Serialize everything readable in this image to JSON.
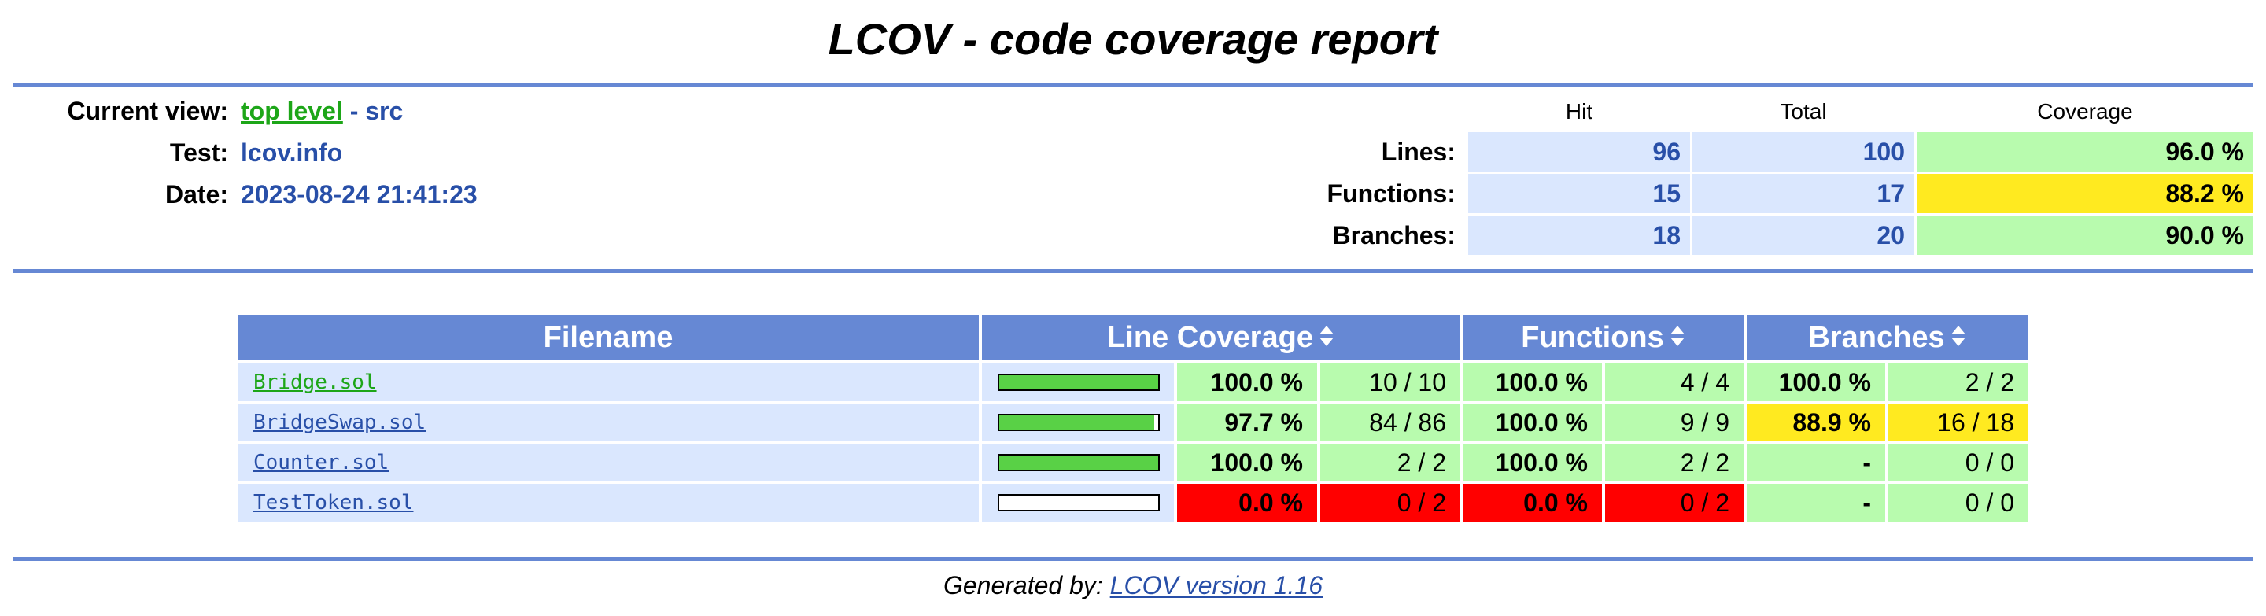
{
  "page_title": "LCOV - code coverage report",
  "header": {
    "current_view_label": "Current view:",
    "current_view_link": "top level",
    "current_view_sep": " - ",
    "current_view_dir": "src",
    "test_label": "Test:",
    "test_value": "lcov.info",
    "date_label": "Date:",
    "date_value": "2023-08-24 21:41:23"
  },
  "summary": {
    "col_hit": "Hit",
    "col_total": "Total",
    "col_coverage": "Coverage",
    "rows": [
      {
        "label": "Lines:",
        "hit": "96",
        "total": "100",
        "coverage": "96.0 %",
        "level": "hi"
      },
      {
        "label": "Functions:",
        "hit": "15",
        "total": "17",
        "coverage": "88.2 %",
        "level": "med"
      },
      {
        "label": "Branches:",
        "hit": "18",
        "total": "20",
        "coverage": "90.0 %",
        "level": "hi"
      }
    ]
  },
  "table": {
    "headers": {
      "filename": "Filename",
      "line_coverage": "Line Coverage",
      "functions": "Functions",
      "branches": "Branches"
    },
    "rows": [
      {
        "file": "Bridge.sol",
        "line_bar": 1.0,
        "line_pct": "100.0 %",
        "line_cnt": "10 / 10",
        "line_level": "hi",
        "fn_pct": "100.0 %",
        "fn_cnt": "4 / 4",
        "fn_level": "hi",
        "br_pct": "100.0 %",
        "br_cnt": "2 / 2",
        "br_level": "hi"
      },
      {
        "file": "BridgeSwap.sol",
        "line_bar": 0.977,
        "line_pct": "97.7 %",
        "line_cnt": "84 / 86",
        "line_level": "hi",
        "fn_pct": "100.0 %",
        "fn_cnt": "9 / 9",
        "fn_level": "hi",
        "br_pct": "88.9 %",
        "br_cnt": "16 / 18",
        "br_level": "med"
      },
      {
        "file": "Counter.sol",
        "line_bar": 1.0,
        "line_pct": "100.0 %",
        "line_cnt": "2 / 2",
        "line_level": "hi",
        "fn_pct": "100.0 %",
        "fn_cnt": "2 / 2",
        "fn_level": "hi",
        "br_pct": "-",
        "br_cnt": "0 / 0",
        "br_level": "hi"
      },
      {
        "file": "TestToken.sol",
        "line_bar": 0.0,
        "line_pct": "0.0 %",
        "line_cnt": "0 / 2",
        "line_level": "lo",
        "fn_pct": "0.0 %",
        "fn_cnt": "0 / 2",
        "fn_level": "lo",
        "br_pct": "-",
        "br_cnt": "0 / 0",
        "br_level": "hi"
      }
    ]
  },
  "footer": {
    "prefix": "Generated by: ",
    "link": "LCOV version 1.16"
  },
  "colors": {
    "ruler": "#6688d4",
    "header_bg": "#6688d4",
    "entry_bg": "#dae7fe",
    "hi": "#a7fc9d",
    "med": "#ffea20",
    "lo": "#ff0000",
    "bar_fill": "#59d146",
    "link": "#284fa8",
    "visited_link": "#1da618"
  }
}
